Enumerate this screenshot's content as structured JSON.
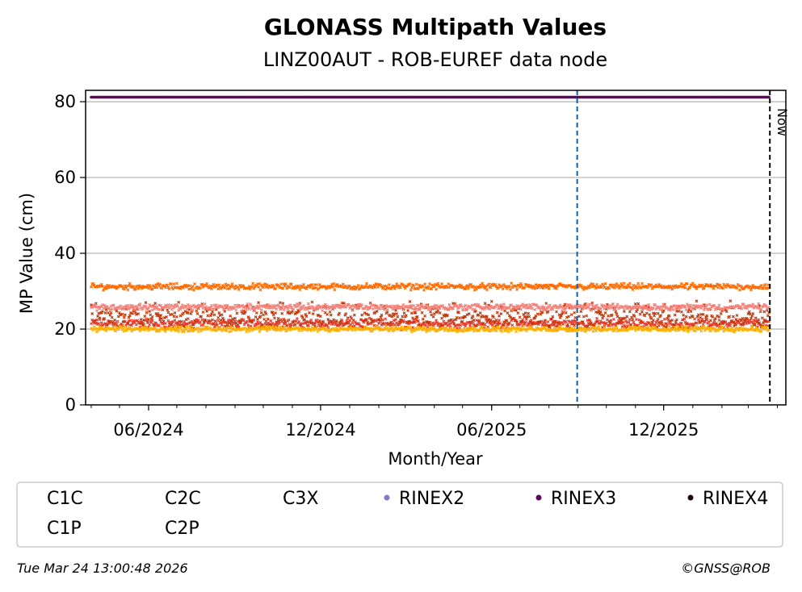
{
  "chart_data": {
    "type": "scatter",
    "title": "GLONASS Multipath Values",
    "subtitle": "LINZ00AUT - ROB-EUREF data node",
    "xlabel": "Month/Year",
    "ylabel": "MP Value (cm)",
    "ylim": [
      0,
      83
    ],
    "x_range": [
      "2024-03-26",
      "2026-04-10"
    ],
    "x_ticks": [
      {
        "date": "2024-06-01",
        "label": "06/2024"
      },
      {
        "date": "2024-12-01",
        "label": "12/2024"
      },
      {
        "date": "2025-06-01",
        "label": "06/2025"
      },
      {
        "date": "2025-12-01",
        "label": "12/2025"
      }
    ],
    "y_ticks": [
      0,
      20,
      40,
      60,
      80
    ],
    "grid": "horizontal",
    "series": [
      {
        "name": "C1C",
        "color": "#e8392b",
        "marker": "x",
        "mean": 21.5,
        "spread": 0.9
      },
      {
        "name": "C2C",
        "color": "#ff6a00",
        "marker": "x",
        "mean": 31.2,
        "spread": 0.6
      },
      {
        "name": "C3X",
        "color": "#c0390b",
        "marker": "x",
        "mean": 23.5,
        "spread": 2.6
      },
      {
        "name": "RINEX2",
        "color": "#8878c8",
        "marker": "o"
      },
      {
        "name": "RINEX3",
        "color": "#5b0a5b",
        "marker": "o",
        "value": 81.2
      },
      {
        "name": "RINEX4",
        "color": "#1a0010",
        "marker": "o"
      },
      {
        "name": "C1P",
        "color": "#f4827a",
        "marker": "x",
        "mean": 25.8,
        "spread": 0.6
      },
      {
        "name": "C2P",
        "color": "#ffb000",
        "marker": "x",
        "mean": 20.0,
        "spread": 0.5
      }
    ],
    "data_start": "2024-04-01",
    "data_end": "2026-03-23",
    "markers": [
      {
        "type": "vline",
        "date": "2025-08-31",
        "style": "dashed",
        "color": "#1060a8"
      },
      {
        "type": "vline",
        "date": "2026-03-24",
        "style": "dashed",
        "color": "#000000",
        "label": "Now"
      }
    ],
    "legend": "bottom"
  },
  "footer": {
    "timestamp": "Tue Mar 24 13:00:48 2026",
    "credit": "©GNSS@ROB"
  }
}
